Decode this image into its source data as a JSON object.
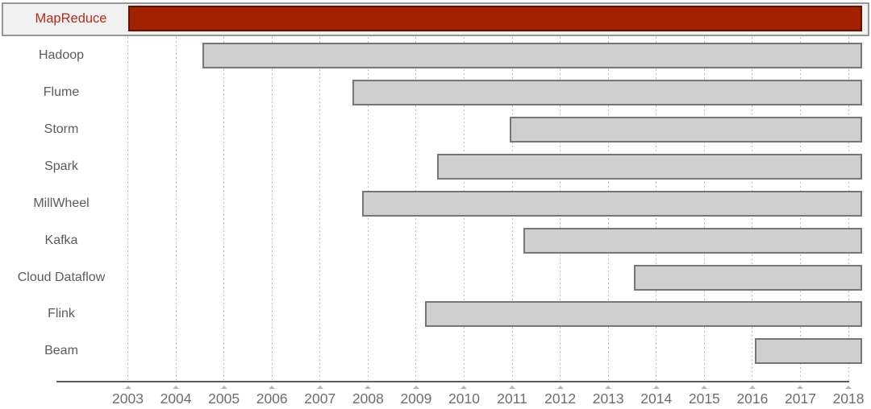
{
  "chart_data": {
    "type": "bar",
    "variant": "horizontal-timeline-gantt",
    "title": "",
    "grid": "dotted-vertical",
    "legend": "none",
    "x_axis": {
      "label": "",
      "range_years": [
        2003,
        2018
      ],
      "bars_extend_to": 2018.28,
      "ticks": [
        "2003",
        "2004",
        "2005",
        "2006",
        "2007",
        "2008",
        "2009",
        "2010",
        "2011",
        "2012",
        "2013",
        "2014",
        "2015",
        "2016",
        "2017",
        "2018"
      ]
    },
    "rows": [
      {
        "label": "MapReduce",
        "start": 2003.0,
        "end": 2018.28,
        "highlight": true
      },
      {
        "label": "Hadoop",
        "start": 2004.55,
        "end": 2018.28,
        "highlight": false
      },
      {
        "label": "Flume",
        "start": 2007.67,
        "end": 2018.28,
        "highlight": false
      },
      {
        "label": "Storm",
        "start": 2010.95,
        "end": 2018.28,
        "highlight": false
      },
      {
        "label": "Spark",
        "start": 2009.43,
        "end": 2018.28,
        "highlight": false
      },
      {
        "label": "MillWheel",
        "start": 2007.88,
        "end": 2018.28,
        "highlight": false
      },
      {
        "label": "Kafka",
        "start": 2011.24,
        "end": 2018.28,
        "highlight": false
      },
      {
        "label": "Cloud Dataflow",
        "start": 2013.54,
        "end": 2018.28,
        "highlight": false
      },
      {
        "label": "Flink",
        "start": 2009.18,
        "end": 2018.28,
        "highlight": false
      },
      {
        "label": "Beam",
        "start": 2016.05,
        "end": 2018.28,
        "highlight": false
      }
    ],
    "colors": {
      "highlight_fill": "#a42100",
      "highlight_border": "#5f1300",
      "highlight_label": "#b22d20",
      "highlight_row_bg": "#f1f1f1",
      "highlight_row_border": "#979797",
      "bar_fill": "#cfcfcf",
      "bar_border": "#767676",
      "row_label": "#5b5b5b",
      "tick_label": "#6e6e6e",
      "gridline": "#bdbdbd",
      "axis_line": "#5c5c5c",
      "tick_marker": "#b3b3b3"
    }
  }
}
